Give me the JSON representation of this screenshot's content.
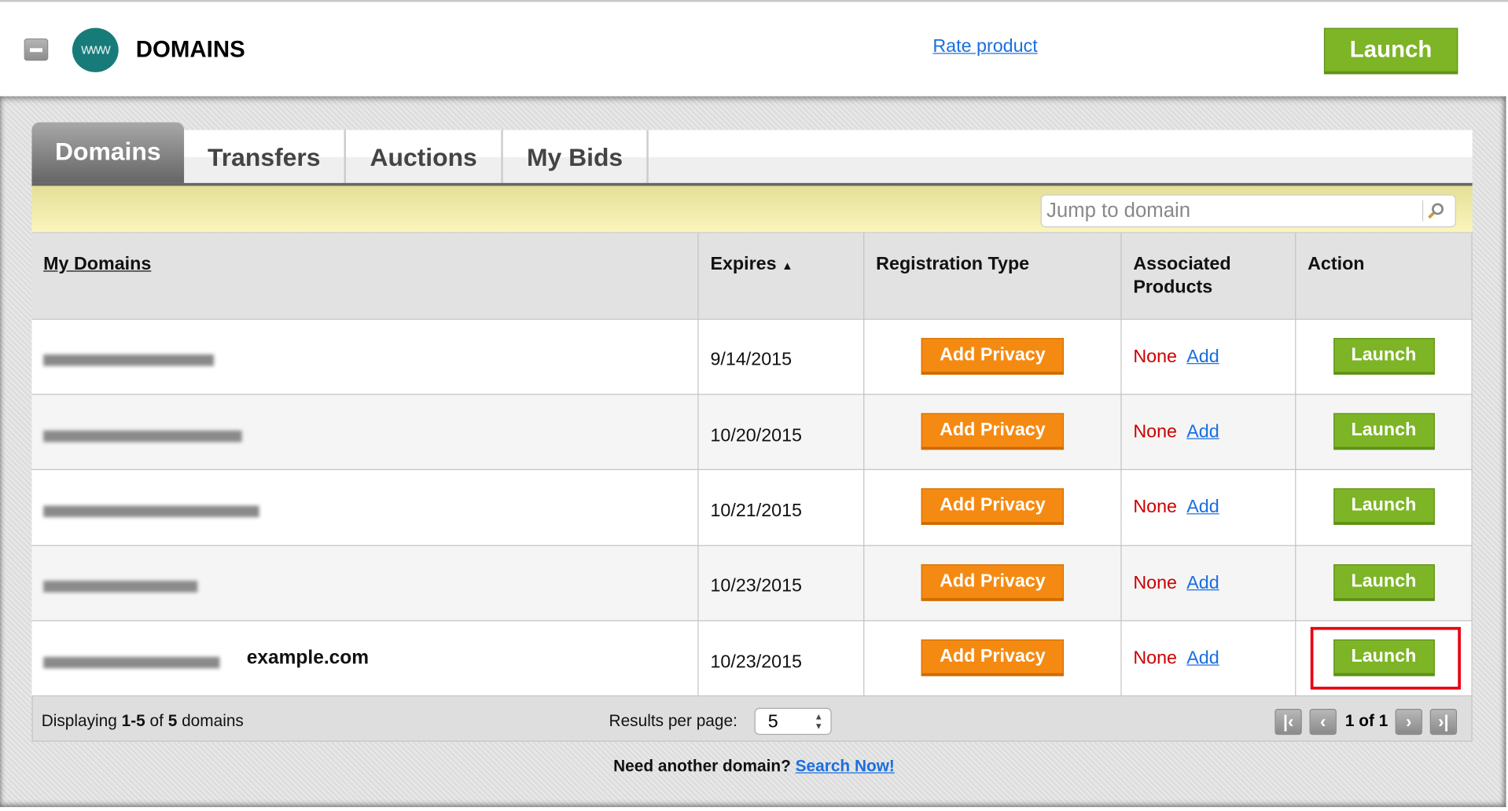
{
  "header": {
    "title": "DOMAINS",
    "logo_text": "www",
    "rate_link": "Rate product",
    "launch_label": "Launch",
    "collapse_icon": "minus-icon"
  },
  "tabs": [
    {
      "label": "Domains",
      "active": true
    },
    {
      "label": "Transfers"
    },
    {
      "label": "Auctions"
    },
    {
      "label": "My Bids"
    }
  ],
  "search": {
    "placeholder": "Jump to domain",
    "icon": "search-icon"
  },
  "table": {
    "headers": [
      "My Domains",
      "Expires",
      "Registration Type",
      "Associated Products",
      "Action"
    ],
    "sort_icon": "sort-ascending-icon",
    "rows": [
      {
        "expires": "9/14/2015",
        "registration": "Add Privacy",
        "products": "None",
        "add": "Add",
        "action": "Launch"
      },
      {
        "expires": "10/20/2015",
        "registration": "Add Privacy",
        "products": "None",
        "add": "Add",
        "action": "Launch"
      },
      {
        "expires": "10/21/2015",
        "registration": "Add Privacy",
        "products": "None",
        "add": "Add",
        "action": "Launch"
      },
      {
        "expires": "10/23/2015",
        "registration": "Add Privacy",
        "products": "None",
        "add": "Add",
        "action": "Launch"
      },
      {
        "annotation": "example.com",
        "expires": "10/23/2015",
        "registration": "Add Privacy",
        "products": "None",
        "add": "Add",
        "action": "Launch"
      }
    ]
  },
  "footer": {
    "displaying_prefix": "Displaying ",
    "range": "1-5",
    "of": " of ",
    "total": "5",
    "suffix": " domains",
    "results_label": "Results per page:",
    "per_page": "5",
    "page_info": "1 of 1"
  },
  "bottom": {
    "prompt": "Need another domain?",
    "link": "Search Now!"
  },
  "colors": {
    "green": "#7db526",
    "orange": "#f58a12",
    "highlight": "#e8000f",
    "link": "#1a6fe0",
    "none": "#cc0000"
  }
}
